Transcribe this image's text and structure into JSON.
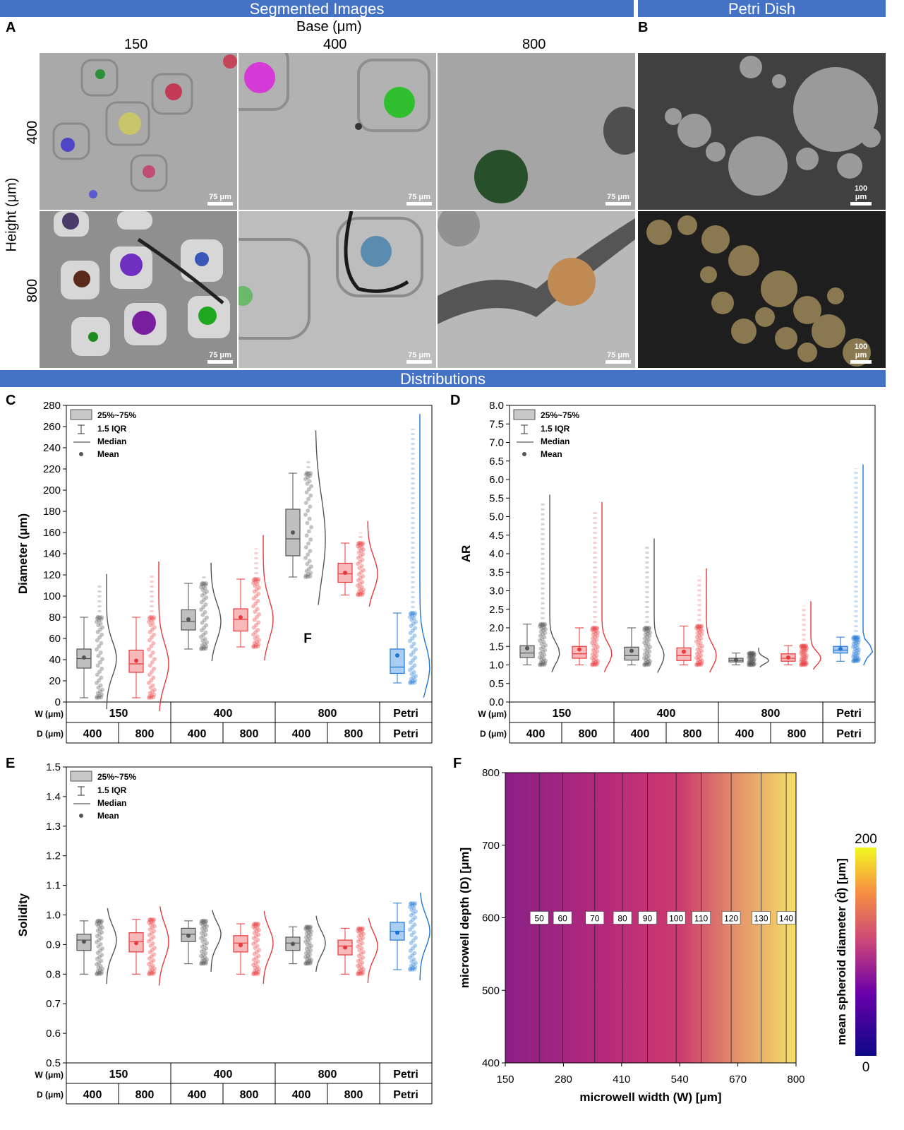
{
  "banners": {
    "segmented": "Segmented Images",
    "petri": "Petri Dish",
    "distributions": "Distributions"
  },
  "panel_letters": {
    "A": "A",
    "B": "B",
    "C": "C",
    "D": "D",
    "E": "E",
    "F": "F"
  },
  "panelA": {
    "base_title": "Base (μm)",
    "height_title": "Height (μm)",
    "base_values": [
      "150",
      "400",
      "800"
    ],
    "height_values": [
      "400",
      "800"
    ],
    "scale_label": "75 μm"
  },
  "panelB": {
    "scale_label": "100 μm"
  },
  "legend": {
    "box": "25%~75%",
    "iqr": "1.5 IQR",
    "median": "Median",
    "mean": "Mean"
  },
  "table": {
    "w_label": "W (μm)",
    "d_label": "D (μm)",
    "w_values": [
      "150",
      "400",
      "800",
      "Petri"
    ],
    "d_values": [
      "400",
      "800",
      "400",
      "800",
      "400",
      "800",
      "Petri"
    ]
  },
  "annotation_F": "F",
  "colors": {
    "gray": "#555555",
    "red": "#e8393c",
    "blue": "#1f77d4",
    "banner": "#4472c4"
  },
  "chart_data": [
    {
      "panel": "C",
      "type": "box",
      "ylabel": "Diameter (μm)",
      "ylim": [
        0,
        280
      ],
      "yticks": [
        0,
        20,
        40,
        60,
        80,
        100,
        120,
        140,
        160,
        180,
        200,
        220,
        240,
        260,
        280
      ],
      "groups": [
        {
          "W": "150",
          "D": "400",
          "color": "gray",
          "q1": 32,
          "median": 41,
          "q3": 50,
          "mean": 42,
          "whisker_low": 4,
          "whisker_high": 80,
          "max": 110
        },
        {
          "W": "150",
          "D": "800",
          "color": "red",
          "q1": 28,
          "median": 36,
          "q3": 49,
          "mean": 39,
          "whisker_low": 4,
          "whisker_high": 80,
          "max": 120
        },
        {
          "W": "400",
          "D": "400",
          "color": "gray",
          "q1": 68,
          "median": 76,
          "q3": 87,
          "mean": 78,
          "whisker_low": 50,
          "whisker_high": 112,
          "max": 120
        },
        {
          "W": "400",
          "D": "800",
          "color": "red",
          "q1": 67,
          "median": 78,
          "q3": 88,
          "mean": 80,
          "whisker_low": 52,
          "whisker_high": 116,
          "max": 145
        },
        {
          "W": "800",
          "D": "400",
          "color": "gray",
          "q1": 138,
          "median": 154,
          "q3": 182,
          "mean": 160,
          "whisker_low": 118,
          "whisker_high": 216,
          "max": 230
        },
        {
          "W": "800",
          "D": "800",
          "color": "red",
          "q1": 113,
          "median": 121,
          "q3": 131,
          "mean": 122,
          "whisker_low": 101,
          "whisker_high": 150,
          "max": 160
        },
        {
          "W": "Petri",
          "D": "Petri",
          "color": "blue",
          "q1": 27,
          "median": 33,
          "q3": 50,
          "mean": 44,
          "whisker_low": 18,
          "whisker_high": 84,
          "max": 258
        }
      ]
    },
    {
      "panel": "D",
      "type": "box",
      "ylabel": "AR",
      "ylim": [
        0,
        8
      ],
      "yticks": [
        0.0,
        0.5,
        1.0,
        1.5,
        2.0,
        2.5,
        3.0,
        3.5,
        4.0,
        4.5,
        5.0,
        5.5,
        6.0,
        6.5,
        7.0,
        7.5,
        8.0
      ],
      "groups": [
        {
          "W": "150",
          "D": "400",
          "color": "gray",
          "q1": 1.2,
          "median": 1.32,
          "q3": 1.52,
          "mean": 1.45,
          "whisker_low": 1.0,
          "whisker_high": 2.1,
          "max": 5.4
        },
        {
          "W": "150",
          "D": "800",
          "color": "red",
          "q1": 1.18,
          "median": 1.3,
          "q3": 1.5,
          "mean": 1.42,
          "whisker_low": 1.0,
          "whisker_high": 2.0,
          "max": 5.2
        },
        {
          "W": "400",
          "D": "400",
          "color": "gray",
          "q1": 1.13,
          "median": 1.25,
          "q3": 1.48,
          "mean": 1.38,
          "whisker_low": 1.0,
          "whisker_high": 2.0,
          "max": 4.2
        },
        {
          "W": "400",
          "D": "800",
          "color": "red",
          "q1": 1.12,
          "median": 1.25,
          "q3": 1.46,
          "mean": 1.36,
          "whisker_low": 1.0,
          "whisker_high": 2.05,
          "max": 3.4
        },
        {
          "W": "800",
          "D": "400",
          "color": "gray",
          "q1": 1.08,
          "median": 1.12,
          "q3": 1.18,
          "mean": 1.14,
          "whisker_low": 1.0,
          "whisker_high": 1.32,
          "max": 1.4
        },
        {
          "W": "800",
          "D": "800",
          "color": "red",
          "q1": 1.1,
          "median": 1.18,
          "q3": 1.3,
          "mean": 1.2,
          "whisker_low": 1.0,
          "whisker_high": 1.52,
          "max": 2.6
        },
        {
          "W": "Petri",
          "D": "Petri",
          "color": "blue",
          "q1": 1.32,
          "median": 1.4,
          "q3": 1.5,
          "mean": 1.43,
          "whisker_low": 1.1,
          "whisker_high": 1.75,
          "max": 6.3
        }
      ]
    },
    {
      "panel": "E",
      "type": "box",
      "ylabel": "Solidity",
      "ylim": [
        0.5,
        1.5
      ],
      "yticks": [
        0.5,
        0.6,
        0.7,
        0.8,
        0.9,
        1.0,
        1.1,
        1.2,
        1.3,
        1.4,
        1.5
      ],
      "groups": [
        {
          "W": "150",
          "D": "400",
          "color": "gray",
          "q1": 0.88,
          "median": 0.915,
          "q3": 0.935,
          "mean": 0.91,
          "whisker_low": 0.8,
          "whisker_high": 0.98,
          "max": 0.99
        },
        {
          "W": "150",
          "D": "800",
          "color": "red",
          "q1": 0.875,
          "median": 0.91,
          "q3": 0.94,
          "mean": 0.905,
          "whisker_low": 0.8,
          "whisker_high": 0.985,
          "max": 0.99
        },
        {
          "W": "400",
          "D": "400",
          "color": "gray",
          "q1": 0.91,
          "median": 0.935,
          "q3": 0.955,
          "mean": 0.93,
          "whisker_low": 0.835,
          "whisker_high": 0.98,
          "max": 0.99
        },
        {
          "W": "400",
          "D": "800",
          "color": "red",
          "q1": 0.875,
          "median": 0.905,
          "q3": 0.93,
          "mean": 0.898,
          "whisker_low": 0.8,
          "whisker_high": 0.97,
          "max": 0.98
        },
        {
          "W": "800",
          "D": "400",
          "color": "gray",
          "q1": 0.88,
          "median": 0.905,
          "q3": 0.925,
          "mean": 0.902,
          "whisker_low": 0.835,
          "whisker_high": 0.96,
          "max": 0.97
        },
        {
          "W": "800",
          "D": "800",
          "color": "red",
          "q1": 0.865,
          "median": 0.895,
          "q3": 0.915,
          "mean": 0.89,
          "whisker_low": 0.8,
          "whisker_high": 0.955,
          "max": 0.96
        },
        {
          "W": "Petri",
          "D": "Petri",
          "color": "blue",
          "q1": 0.915,
          "median": 0.945,
          "q3": 0.975,
          "mean": 0.94,
          "whisker_low": 0.815,
          "whisker_high": 1.04,
          "max": 1.04
        }
      ]
    },
    {
      "panel": "F",
      "type": "heatmap",
      "xlabel": "microwell width (W) [μm]",
      "ylabel": "microwell depth (D) [μm]",
      "xlim": [
        150,
        800
      ],
      "ylim": [
        400,
        800
      ],
      "xticks": [
        150,
        280,
        410,
        540,
        670,
        800
      ],
      "yticks": [
        400,
        500,
        600,
        700,
        800
      ],
      "colorbar_label": "mean spheroid  diameter (d̂) [μm]",
      "colorbar_range": [
        0,
        200
      ],
      "contour_labels": [
        50,
        60,
        70,
        80,
        90,
        100,
        110,
        120,
        130,
        140
      ],
      "contour_x": [
        226,
        278,
        350,
        412,
        468,
        532,
        588,
        655,
        722,
        778
      ]
    }
  ]
}
